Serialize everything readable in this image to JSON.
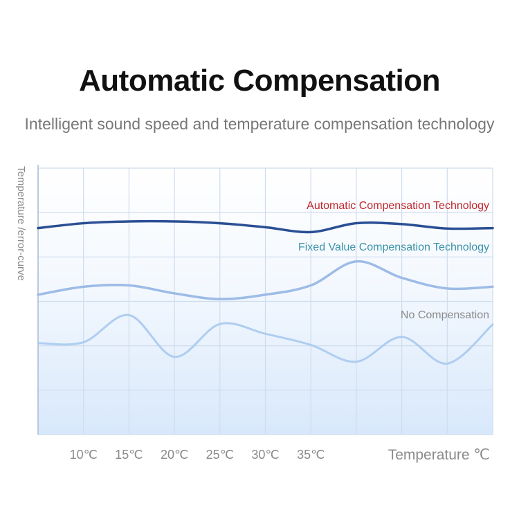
{
  "header": {
    "title": "Automatic Compensation",
    "subtitle": "Intelligent sound speed and temperature compensation technology"
  },
  "chart_data": {
    "type": "line",
    "title": "Automatic Compensation",
    "subtitle": "Intelligent sound speed and temperature compensation technology",
    "xlabel": "Temperature ℃",
    "ylabel": "Temperature /error-curve",
    "x_ticks": [
      "10℃",
      "15℃",
      "20℃",
      "25℃",
      "30℃",
      "35℃"
    ],
    "x": [
      5,
      10,
      15,
      20,
      25,
      30,
      35,
      40,
      45,
      50,
      55
    ],
    "ylim": [
      0,
      6
    ],
    "grid": true,
    "series": [
      {
        "name": "Automatic Compensation Technology",
        "color": "#2a4f94",
        "values": [
          4.65,
          4.76,
          4.8,
          4.8,
          4.76,
          4.67,
          4.56,
          4.76,
          4.74,
          4.64,
          4.65
        ]
      },
      {
        "name": "Fixed Value Compensation Technology",
        "color": "#9dbbe6",
        "values": [
          3.15,
          3.33,
          3.36,
          3.18,
          3.05,
          3.15,
          3.36,
          3.9,
          3.53,
          3.29,
          3.33
        ]
      },
      {
        "name": "No Compensation",
        "color": "#aecdf0",
        "values": [
          2.06,
          2.08,
          2.69,
          1.75,
          2.49,
          2.27,
          2.02,
          1.64,
          2.2,
          1.6,
          2.48
        ]
      }
    ]
  }
}
